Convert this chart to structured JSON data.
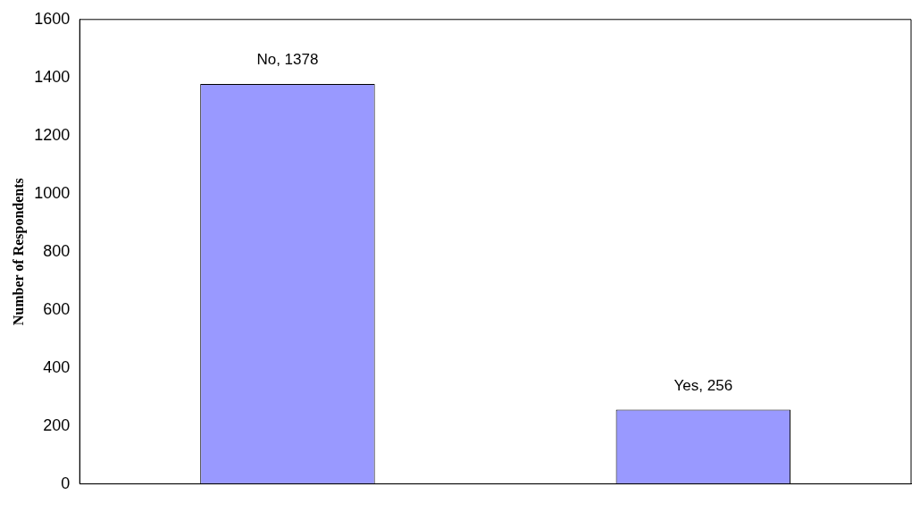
{
  "chart_data": {
    "type": "bar",
    "ylabel": "Number of Respondents",
    "categories": [
      null,
      null
    ],
    "values": [
      1378,
      256
    ],
    "color": "#9999ff",
    "value_labels": [
      "No, 1378",
      "Yes, 256"
    ],
    "ylim": [
      0,
      1600
    ],
    "yticks": [
      0,
      200,
      400,
      600,
      800,
      1000,
      1200,
      1400,
      1600
    ],
    "grid": false,
    "legend": false
  }
}
